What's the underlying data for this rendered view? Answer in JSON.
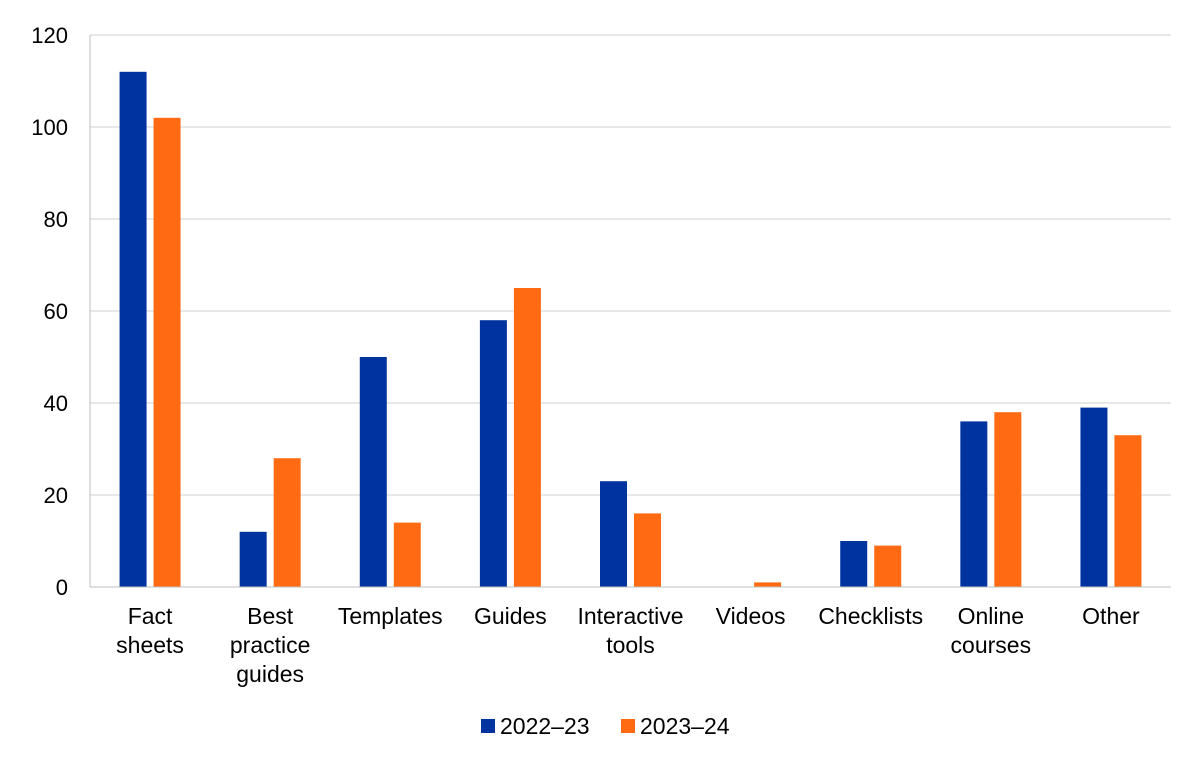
{
  "chart_data": {
    "type": "bar",
    "title": "",
    "xlabel": "",
    "ylabel": "",
    "ylim": [
      0,
      120
    ],
    "yticks": [
      0,
      20,
      40,
      60,
      80,
      100,
      120
    ],
    "grid": true,
    "legend_position": "bottom",
    "categories": [
      [
        "Fact",
        "sheets"
      ],
      [
        "Best",
        "practice",
        "guides"
      ],
      [
        "Templates"
      ],
      [
        "Guides"
      ],
      [
        "Interactive",
        "tools"
      ],
      [
        "Videos"
      ],
      [
        "Checklists"
      ],
      [
        "Online",
        "courses"
      ],
      [
        "Other"
      ]
    ],
    "series": [
      {
        "name": "2022–23",
        "color": "#0033A0",
        "values": [
          112,
          12,
          50,
          58,
          23,
          0,
          10,
          36,
          39
        ]
      },
      {
        "name": "2023–24",
        "color": "#FF6A13",
        "values": [
          102,
          28,
          14,
          65,
          16,
          1,
          9,
          38,
          33
        ]
      }
    ]
  }
}
